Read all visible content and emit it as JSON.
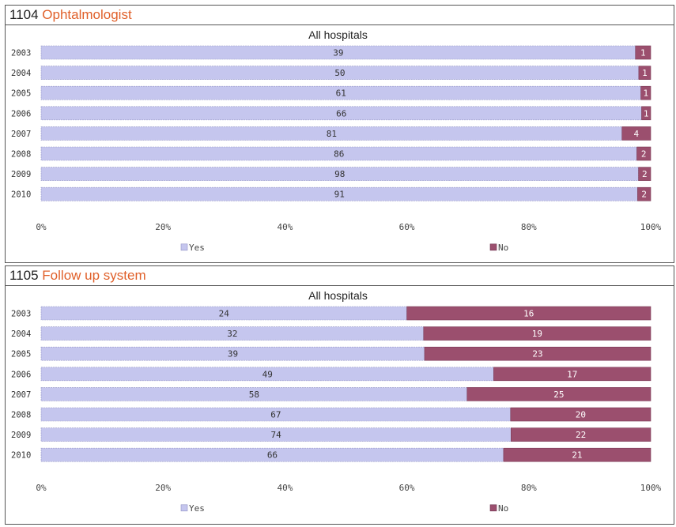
{
  "panels": [
    {
      "code": "1104",
      "topic": "Ophtalmologist",
      "chart_data": {
        "type": "bar",
        "orientation": "horizontal",
        "stacked": "percent",
        "title": "All hospitals",
        "categories": [
          "2003",
          "2004",
          "2005",
          "2006",
          "2007",
          "2008",
          "2009",
          "2010"
        ],
        "series": [
          {
            "name": "Yes",
            "values": [
              39,
              50,
              61,
              66,
              81,
              86,
              98,
              91
            ]
          },
          {
            "name": "No",
            "values": [
              1,
              1,
              1,
              1,
              4,
              2,
              2,
              2
            ]
          }
        ],
        "xticks": [
          "0%",
          "20%",
          "40%",
          "60%",
          "80%",
          "100%"
        ],
        "xlim": [
          0,
          100
        ],
        "legend": "bottom",
        "colors": {
          "yes": "#c5c6ee",
          "no": "#9b4f6e"
        }
      }
    },
    {
      "code": "1105",
      "topic": "Follow up system",
      "chart_data": {
        "type": "bar",
        "orientation": "horizontal",
        "stacked": "percent",
        "title": "All hospitals",
        "categories": [
          "2003",
          "2004",
          "2005",
          "2006",
          "2007",
          "2008",
          "2009",
          "2010"
        ],
        "series": [
          {
            "name": "Yes",
            "values": [
              24,
              32,
              39,
              49,
              58,
              67,
              74,
              66
            ]
          },
          {
            "name": "No",
            "values": [
              16,
              19,
              23,
              17,
              25,
              20,
              22,
              21
            ]
          }
        ],
        "xticks": [
          "0%",
          "20%",
          "40%",
          "60%",
          "80%",
          "100%"
        ],
        "xlim": [
          0,
          100
        ],
        "legend": "bottom",
        "colors": {
          "yes": "#c5c6ee",
          "no": "#9b4f6e"
        }
      }
    }
  ]
}
